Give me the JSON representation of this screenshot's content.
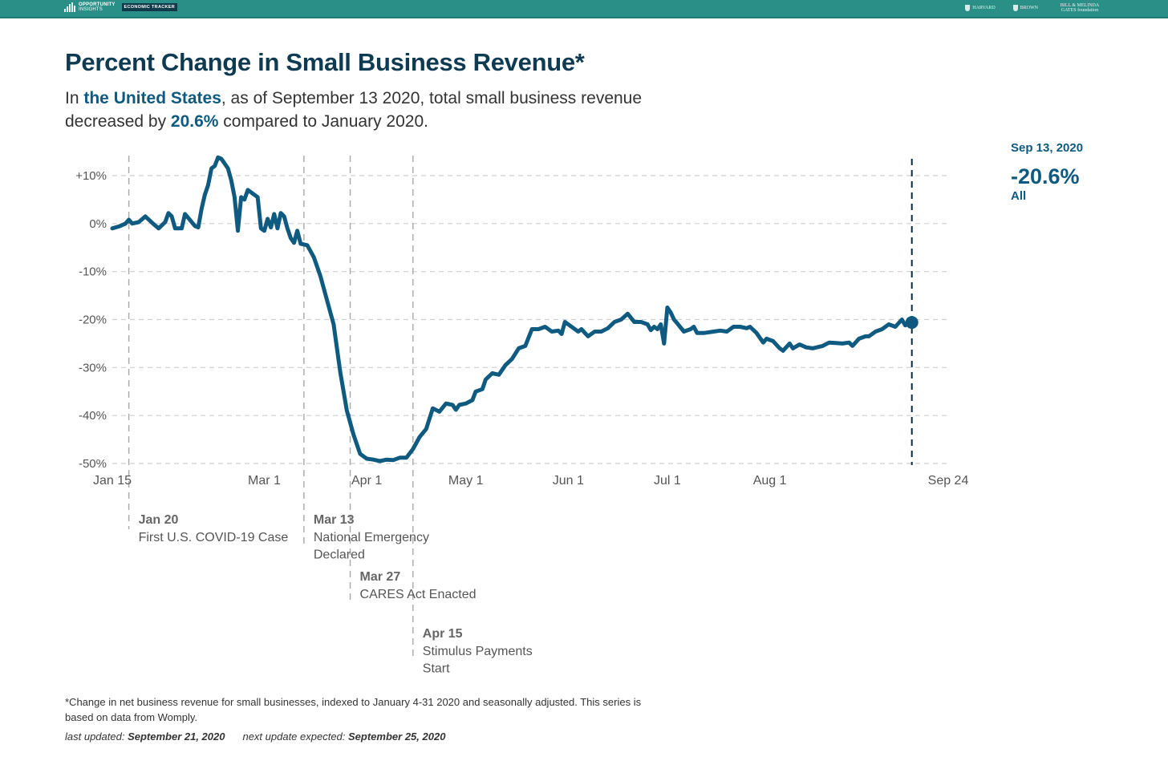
{
  "header": {
    "brand_line1": "OPPORTUNITY",
    "brand_line2": "INSIGHTS",
    "tracker_label": "ECONOMIC TRACKER",
    "partners": [
      "HARVARD",
      "BROWN",
      "BILL & MELINDA GATES foundation"
    ],
    "bar_color": "#2a8f87"
  },
  "title": "Percent Change in Small Business Revenue*",
  "subtitle": {
    "p1": "In ",
    "place": "the United States",
    "p2": ", as of September 13 2020, total small business revenue decreased by ",
    "pct": "20.6%",
    "p3": " compared to January 2020."
  },
  "readout": {
    "date": "Sep 13, 2020",
    "value": "-20.6%",
    "series": "All"
  },
  "footer": {
    "note": "*Change in net business revenue for small businesses, indexed to January 4-31 2020 and seasonally adjusted. This series is based on data from Womply.",
    "last_updated_label": "last updated: ",
    "last_updated": "September 21, 2020",
    "next_update_label": "next update expected: ",
    "next_update": "September 25, 2020"
  },
  "chart_data": {
    "type": "line",
    "title": "Percent Change in Small Business Revenue*",
    "xlabel": "",
    "ylabel": "",
    "x_range": [
      "2020-01-15",
      "2020-09-24"
    ],
    "ylim": [
      -50,
      12
    ],
    "y_ticks": [
      10,
      0,
      -10,
      -20,
      -30,
      -40,
      -50
    ],
    "y_tick_labels": [
      "+10%",
      "0%",
      "-10%",
      "-20%",
      "-30%",
      "-40%",
      "-50%"
    ],
    "x_ticks": [
      "2020-01-15",
      "2020-03-01",
      "2020-04-01",
      "2020-05-01",
      "2020-06-01",
      "2020-07-01",
      "2020-08-01",
      "2020-09-24"
    ],
    "x_tick_labels": [
      "Jan 15",
      "Mar 1",
      "Apr 1",
      "May 1",
      "Jun 1",
      "Jul 1",
      "Aug 1",
      "Sep 24"
    ],
    "grid": "horizontal dashed",
    "series_color": "#0e5a80",
    "series": [
      {
        "name": "All",
        "points": [
          [
            "2020-01-15",
            -1.0
          ],
          [
            "2020-01-17",
            -0.6
          ],
          [
            "2020-01-19",
            0.0
          ],
          [
            "2020-01-20",
            0.8
          ],
          [
            "2020-01-21",
            0.0
          ],
          [
            "2020-01-23",
            0.3
          ],
          [
            "2020-01-25",
            1.5
          ],
          [
            "2020-01-27",
            0.2
          ],
          [
            "2020-01-29",
            -1.0
          ],
          [
            "2020-01-31",
            0.3
          ],
          [
            "2020-02-01",
            2.2
          ],
          [
            "2020-02-02",
            1.5
          ],
          [
            "2020-02-03",
            -1.0
          ],
          [
            "2020-02-05",
            -1.0
          ],
          [
            "2020-02-06",
            2.0
          ],
          [
            "2020-02-07",
            1.2
          ],
          [
            "2020-02-09",
            -0.5
          ],
          [
            "2020-02-10",
            -0.8
          ],
          [
            "2020-02-11",
            3.0
          ],
          [
            "2020-02-12",
            6.0
          ],
          [
            "2020-02-13",
            8.0
          ],
          [
            "2020-02-14",
            11.5
          ],
          [
            "2020-02-15",
            12.0
          ],
          [
            "2020-02-16",
            13.8
          ],
          [
            "2020-02-17",
            13.5
          ],
          [
            "2020-02-19",
            11.5
          ],
          [
            "2020-02-20",
            9.0
          ],
          [
            "2020-02-21",
            5.5
          ],
          [
            "2020-02-22",
            -1.5
          ],
          [
            "2020-02-23",
            5.5
          ],
          [
            "2020-02-24",
            5.0
          ],
          [
            "2020-02-25",
            7.0
          ],
          [
            "2020-02-27",
            6.0
          ],
          [
            "2020-02-28",
            5.5
          ],
          [
            "2020-02-29",
            -1.0
          ],
          [
            "2020-03-01",
            -1.5
          ],
          [
            "2020-03-02",
            1.0
          ],
          [
            "2020-03-03",
            -0.8
          ],
          [
            "2020-03-04",
            2.0
          ],
          [
            "2020-03-05",
            -1.0
          ],
          [
            "2020-03-06",
            2.2
          ],
          [
            "2020-03-07",
            1.5
          ],
          [
            "2020-03-08",
            -1.0
          ],
          [
            "2020-03-09",
            -3.0
          ],
          [
            "2020-03-10",
            -4.0
          ],
          [
            "2020-03-11",
            -1.5
          ],
          [
            "2020-03-12",
            -4.2
          ],
          [
            "2020-03-14",
            -4.5
          ],
          [
            "2020-03-16",
            -7.0
          ],
          [
            "2020-03-18",
            -11.0
          ],
          [
            "2020-03-20",
            -16.0
          ],
          [
            "2020-03-22",
            -21.0
          ],
          [
            "2020-03-24",
            -31.0
          ],
          [
            "2020-03-26",
            -39.0
          ],
          [
            "2020-03-28",
            -44.0
          ],
          [
            "2020-03-30",
            -48.0
          ],
          [
            "2020-04-01",
            -49.0
          ],
          [
            "2020-04-03",
            -49.2
          ],
          [
            "2020-04-05",
            -49.5
          ],
          [
            "2020-04-07",
            -49.2
          ],
          [
            "2020-04-09",
            -49.3
          ],
          [
            "2020-04-11",
            -48.8
          ],
          [
            "2020-04-13",
            -48.8
          ],
          [
            "2020-04-15",
            -47.0
          ],
          [
            "2020-04-17",
            -44.5
          ],
          [
            "2020-04-19",
            -42.8
          ],
          [
            "2020-04-21",
            -38.5
          ],
          [
            "2020-04-23",
            -39.2
          ],
          [
            "2020-04-25",
            -37.5
          ],
          [
            "2020-04-27",
            -37.8
          ],
          [
            "2020-04-28",
            -38.8
          ],
          [
            "2020-04-29",
            -37.8
          ],
          [
            "2020-05-01",
            -37.5
          ],
          [
            "2020-05-03",
            -36.8
          ],
          [
            "2020-05-04",
            -35.0
          ],
          [
            "2020-05-06",
            -34.5
          ],
          [
            "2020-05-07",
            -32.5
          ],
          [
            "2020-05-09",
            -31.2
          ],
          [
            "2020-05-11",
            -31.5
          ],
          [
            "2020-05-13",
            -29.5
          ],
          [
            "2020-05-15",
            -28.2
          ],
          [
            "2020-05-17",
            -26.0
          ],
          [
            "2020-05-19",
            -25.5
          ],
          [
            "2020-05-21",
            -22.0
          ],
          [
            "2020-05-23",
            -22.0
          ],
          [
            "2020-05-25",
            -21.5
          ],
          [
            "2020-05-27",
            -22.5
          ],
          [
            "2020-05-29",
            -22.3
          ],
          [
            "2020-05-30",
            -23.0
          ],
          [
            "2020-05-31",
            -20.5
          ],
          [
            "2020-06-02",
            -21.5
          ],
          [
            "2020-06-04",
            -22.5
          ],
          [
            "2020-06-05",
            -22.0
          ],
          [
            "2020-06-07",
            -23.5
          ],
          [
            "2020-06-09",
            -22.5
          ],
          [
            "2020-06-11",
            -22.5
          ],
          [
            "2020-06-13",
            -21.8
          ],
          [
            "2020-06-15",
            -20.5
          ],
          [
            "2020-06-17",
            -20.0
          ],
          [
            "2020-06-19",
            -18.8
          ],
          [
            "2020-06-21",
            -20.5
          ],
          [
            "2020-06-23",
            -20.5
          ],
          [
            "2020-06-25",
            -21.0
          ],
          [
            "2020-06-26",
            -22.2
          ],
          [
            "2020-06-27",
            -21.5
          ],
          [
            "2020-06-28",
            -22.0
          ],
          [
            "2020-06-29",
            -21.0
          ],
          [
            "2020-06-30",
            -25.0
          ],
          [
            "2020-07-01",
            -17.5
          ],
          [
            "2020-07-02",
            -18.5
          ],
          [
            "2020-07-03",
            -20.0
          ],
          [
            "2020-07-04",
            -20.8
          ],
          [
            "2020-07-06",
            -22.5
          ],
          [
            "2020-07-08",
            -22.0
          ],
          [
            "2020-07-09",
            -21.5
          ],
          [
            "2020-07-10",
            -22.8
          ],
          [
            "2020-07-12",
            -22.8
          ],
          [
            "2020-07-15",
            -22.5
          ],
          [
            "2020-07-17",
            -22.3
          ],
          [
            "2020-07-19",
            -22.5
          ],
          [
            "2020-07-21",
            -21.5
          ],
          [
            "2020-07-23",
            -21.5
          ],
          [
            "2020-07-25",
            -21.8
          ],
          [
            "2020-07-26",
            -21.5
          ],
          [
            "2020-07-28",
            -22.8
          ],
          [
            "2020-07-30",
            -24.8
          ],
          [
            "2020-07-31",
            -24.0
          ],
          [
            "2020-08-02",
            -24.5
          ],
          [
            "2020-08-04",
            -26.0
          ],
          [
            "2020-08-05",
            -26.5
          ],
          [
            "2020-08-07",
            -25.0
          ],
          [
            "2020-08-08",
            -26.0
          ],
          [
            "2020-08-10",
            -25.2
          ],
          [
            "2020-08-12",
            -25.8
          ],
          [
            "2020-08-14",
            -26.0
          ],
          [
            "2020-08-17",
            -25.5
          ],
          [
            "2020-08-19",
            -24.8
          ],
          [
            "2020-08-21",
            -24.9
          ],
          [
            "2020-08-23",
            -25.0
          ],
          [
            "2020-08-25",
            -24.8
          ],
          [
            "2020-08-26",
            -25.5
          ],
          [
            "2020-08-28",
            -24.0
          ],
          [
            "2020-08-30",
            -23.5
          ],
          [
            "2020-08-31",
            -23.5
          ],
          [
            "2020-09-02",
            -22.5
          ],
          [
            "2020-09-04",
            -22.0
          ],
          [
            "2020-09-06",
            -21.0
          ],
          [
            "2020-09-08",
            -21.5
          ],
          [
            "2020-09-10",
            -20.0
          ],
          [
            "2020-09-11",
            -21.2
          ],
          [
            "2020-09-13",
            -20.6
          ]
        ]
      }
    ],
    "highlight_point": {
      "date": "2020-09-13",
      "value": -20.6,
      "label": "Sep 13, 2020"
    },
    "annotations": [
      {
        "date": "2020-01-20",
        "title": "Jan 20",
        "lines": [
          "First U.S. COVID-19 Case"
        ]
      },
      {
        "date": "2020-03-13",
        "title": "Mar 13",
        "lines": [
          "National Emergency",
          "Declared"
        ]
      },
      {
        "date": "2020-03-27",
        "title": "Mar 27",
        "lines": [
          "CARES Act Enacted"
        ]
      },
      {
        "date": "2020-04-15",
        "title": "Apr 15",
        "lines": [
          "Stimulus Payments",
          "Start"
        ]
      }
    ]
  }
}
